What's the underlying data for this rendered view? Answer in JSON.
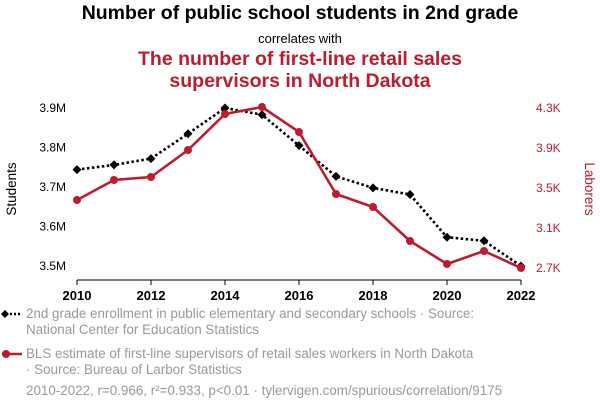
{
  "header": {
    "title": "Number of public school students in 2nd grade",
    "subtitle": "correlates with",
    "title2_line1": "The number of first-line retail sales",
    "title2_line2": "supervisors in North Dakota"
  },
  "colors": {
    "series1": "#000000",
    "series2": "#bd1c2f",
    "muted": "#9a9a9a"
  },
  "legend": [
    {
      "line1": "2nd grade enrollment in public elementary and secondary schools · Source:",
      "line2": "National Center for Education Statistics"
    },
    {
      "line1": "BLS estimate of first-line supervisors of retail sales workers in North Dakota",
      "line2": "· Source: Bureau of Larbor Statistics"
    }
  ],
  "footer": "2010-2022, r=0.966, r²=0.933, p<0.01 · tylervigen.com/spurious/correlation/9175",
  "chart_data": {
    "type": "line",
    "x": [
      2010,
      2011,
      2012,
      2013,
      2014,
      2015,
      2016,
      2017,
      2018,
      2019,
      2020,
      2021,
      2022
    ],
    "xticks": [
      2010,
      2012,
      2014,
      2016,
      2018,
      2020,
      2022
    ],
    "ylabel_left": "Students",
    "ylabel_right": "Laborers",
    "y_left": {
      "lim": [
        3.48,
        3.9
      ],
      "ticks": [
        3.5,
        3.6,
        3.7,
        3.8,
        3.9
      ],
      "tick_labels": [
        "3.5M",
        "3.6M",
        "3.7M",
        "3.8M",
        "3.9M"
      ]
    },
    "y_right": {
      "lim": [
        2640,
        4300
      ],
      "ticks": [
        2700,
        3100,
        3500,
        3900,
        4300
      ],
      "tick_labels": [
        "2.7K",
        "3.1K",
        "3.5K",
        "3.9K",
        "4.3K"
      ]
    },
    "grid": false,
    "series": [
      {
        "axis": "left",
        "style": "dotted-diamond",
        "values": [
          3.744,
          3.756,
          3.772,
          3.835,
          3.9,
          3.883,
          3.805,
          3.727,
          3.698,
          3.681,
          3.573,
          3.564,
          3.5
        ]
      },
      {
        "axis": "right",
        "style": "solid-circle",
        "values": [
          3380,
          3580,
          3610,
          3880,
          4240,
          4310,
          4060,
          3440,
          3310,
          2970,
          2740,
          2870,
          2700
        ]
      }
    ]
  }
}
